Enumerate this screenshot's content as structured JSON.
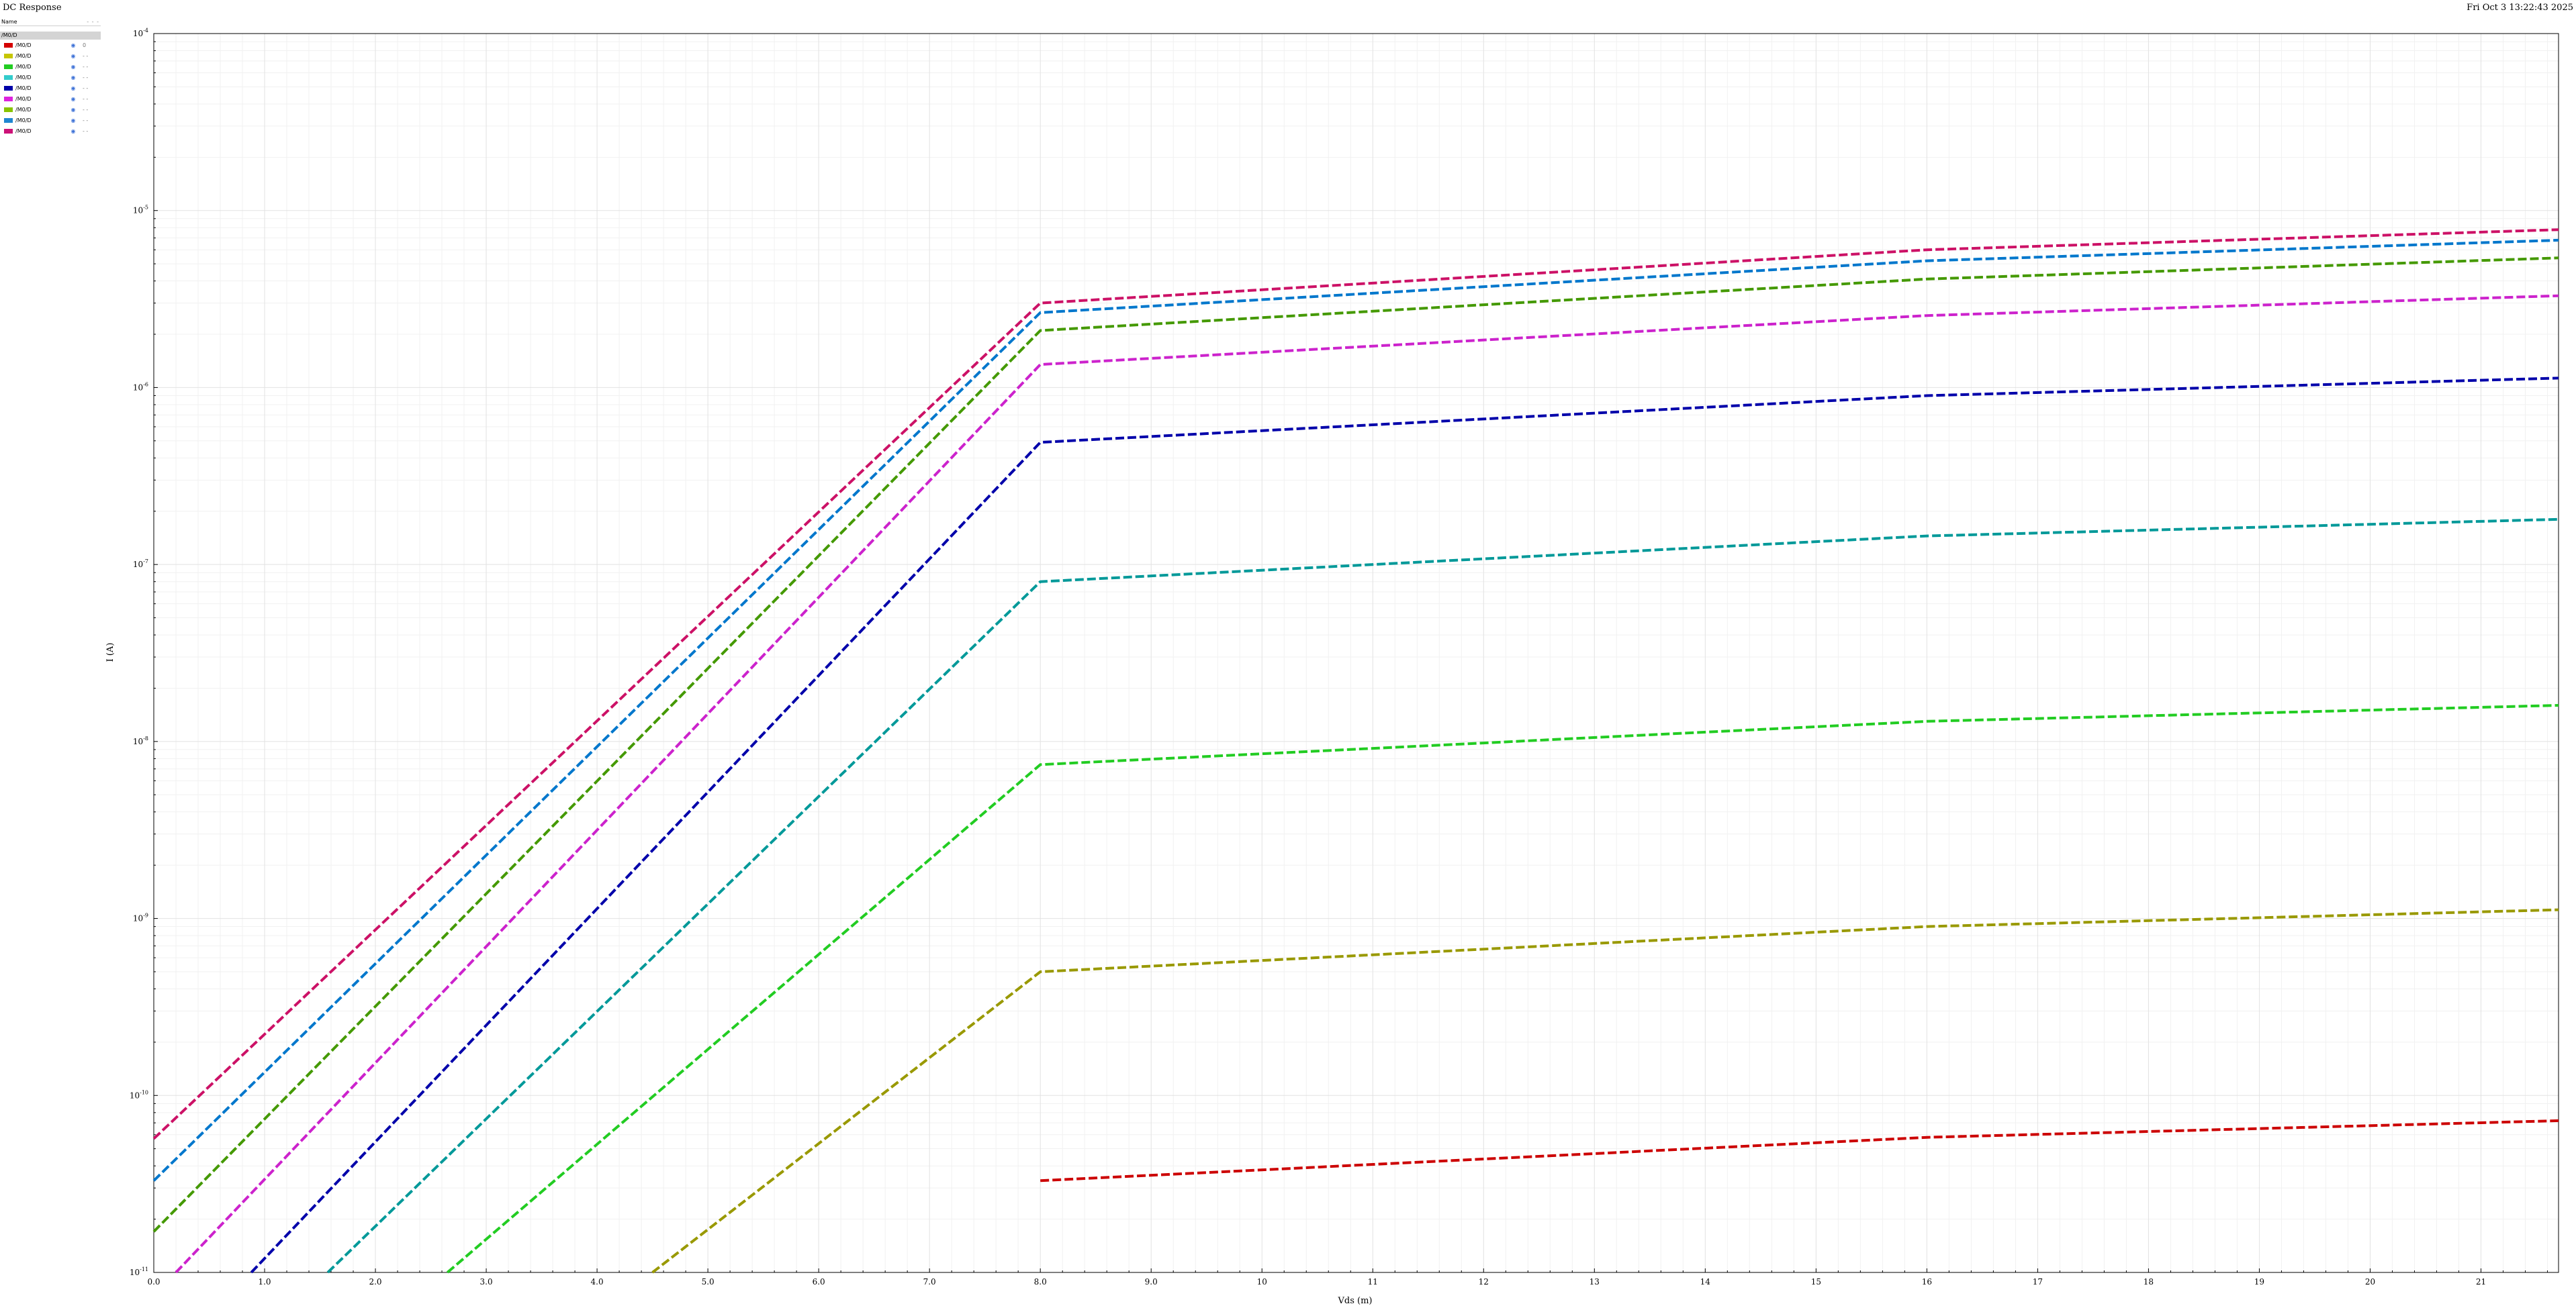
{
  "window": {
    "title": "DC Response",
    "timestamp": "Fri Oct 3 13:22:43 2025"
  },
  "legend": {
    "header_name": "Name",
    "header_dashes": "- - -",
    "group": "/M0/D",
    "items": [
      {
        "label": "/M0/D",
        "color": "#d40000",
        "extra": "0"
      },
      {
        "label": "/M0/D",
        "color": "#c6c600",
        "extra": "- -"
      },
      {
        "label": "/M0/D",
        "color": "#22cc22",
        "extra": "- -"
      },
      {
        "label": "/M0/D",
        "color": "#33cccc",
        "extra": "- -"
      },
      {
        "label": "/M0/D",
        "color": "#0000a8",
        "extra": "- -"
      },
      {
        "label": "/M0/D",
        "color": "#dd22dd",
        "extra": "- -"
      },
      {
        "label": "/M0/D",
        "color": "#88c400",
        "extra": "- -"
      },
      {
        "label": "/M0/D",
        "color": "#1f86d1",
        "extra": "- -"
      },
      {
        "label": "/M0/D",
        "color": "#cc1177",
        "extra": "- -"
      }
    ]
  },
  "chart_data": {
    "type": "line",
    "xlabel": "Vds (m)",
    "ylabel": "I (A)",
    "xlim": [
      0,
      21.7
    ],
    "ylim_log10": [
      -11,
      -4
    ],
    "yscale": "log",
    "x_ticks": [
      "0.0",
      "1.0",
      "2.0",
      "3.0",
      "4.0",
      "5.0",
      "6.0",
      "7.0",
      "8.0",
      "9.0",
      "10",
      "11",
      "12",
      "13",
      "14",
      "15",
      "16",
      "17",
      "18",
      "19",
      "20",
      "21"
    ],
    "y_ticks": [
      {
        "base": "10",
        "exp": "-4"
      },
      {
        "base": "10",
        "exp": "-5"
      },
      {
        "base": "10",
        "exp": "-6"
      },
      {
        "base": "10",
        "exp": "-7"
      },
      {
        "base": "10",
        "exp": "-8"
      },
      {
        "base": "10",
        "exp": "-9"
      },
      {
        "base": "10",
        "exp": "-10"
      },
      {
        "base": "10",
        "exp": "-11"
      }
    ],
    "grid": true,
    "line_style": "dashed",
    "series": [
      {
        "color": "#cc0000",
        "points": [
          [
            8.0,
            3.3e-11
          ],
          [
            16.0,
            5.8e-11
          ],
          [
            21.7,
            7.2e-11
          ]
        ]
      },
      {
        "color": "#999900",
        "points": [
          [
            4.5,
            1e-11
          ],
          [
            8.0,
            5e-10
          ],
          [
            16.0,
            9e-10
          ],
          [
            21.7,
            1.12e-09
          ]
        ]
      },
      {
        "color": "#22cc22",
        "points": [
          [
            2.65,
            1e-11
          ],
          [
            8.0,
            7.4e-09
          ],
          [
            16.0,
            1.3e-08
          ],
          [
            21.7,
            1.6e-08
          ]
        ]
      },
      {
        "color": "#009999",
        "points": [
          [
            1.57,
            1e-11
          ],
          [
            8.0,
            8e-08
          ],
          [
            16.0,
            1.45e-07
          ],
          [
            21.7,
            1.8e-07
          ]
        ]
      },
      {
        "color": "#0000aa",
        "points": [
          [
            0.88,
            1e-11
          ],
          [
            8.0,
            4.9e-07
          ],
          [
            16.0,
            9e-07
          ],
          [
            21.7,
            1.13e-06
          ]
        ]
      },
      {
        "color": "#cc22cc",
        "points": [
          [
            0.2,
            1e-11
          ],
          [
            8.0,
            1.35e-06
          ],
          [
            16.0,
            2.55e-06
          ],
          [
            21.7,
            3.3e-06
          ]
        ]
      },
      {
        "color": "#449900",
        "points": [
          [
            0.0,
            1.7e-11
          ],
          [
            8.0,
            2.1e-06
          ],
          [
            16.0,
            4.1e-06
          ],
          [
            21.7,
            5.4e-06
          ]
        ]
      },
      {
        "color": "#0077cc",
        "points": [
          [
            0.0,
            3.3e-11
          ],
          [
            8.0,
            2.65e-06
          ],
          [
            16.0,
            5.2e-06
          ],
          [
            21.7,
            6.8e-06
          ]
        ]
      },
      {
        "color": "#cc1166",
        "points": [
          [
            0.0,
            5.7e-11
          ],
          [
            8.0,
            3e-06
          ],
          [
            16.0,
            6e-06
          ],
          [
            21.7,
            7.8e-06
          ]
        ]
      }
    ]
  }
}
